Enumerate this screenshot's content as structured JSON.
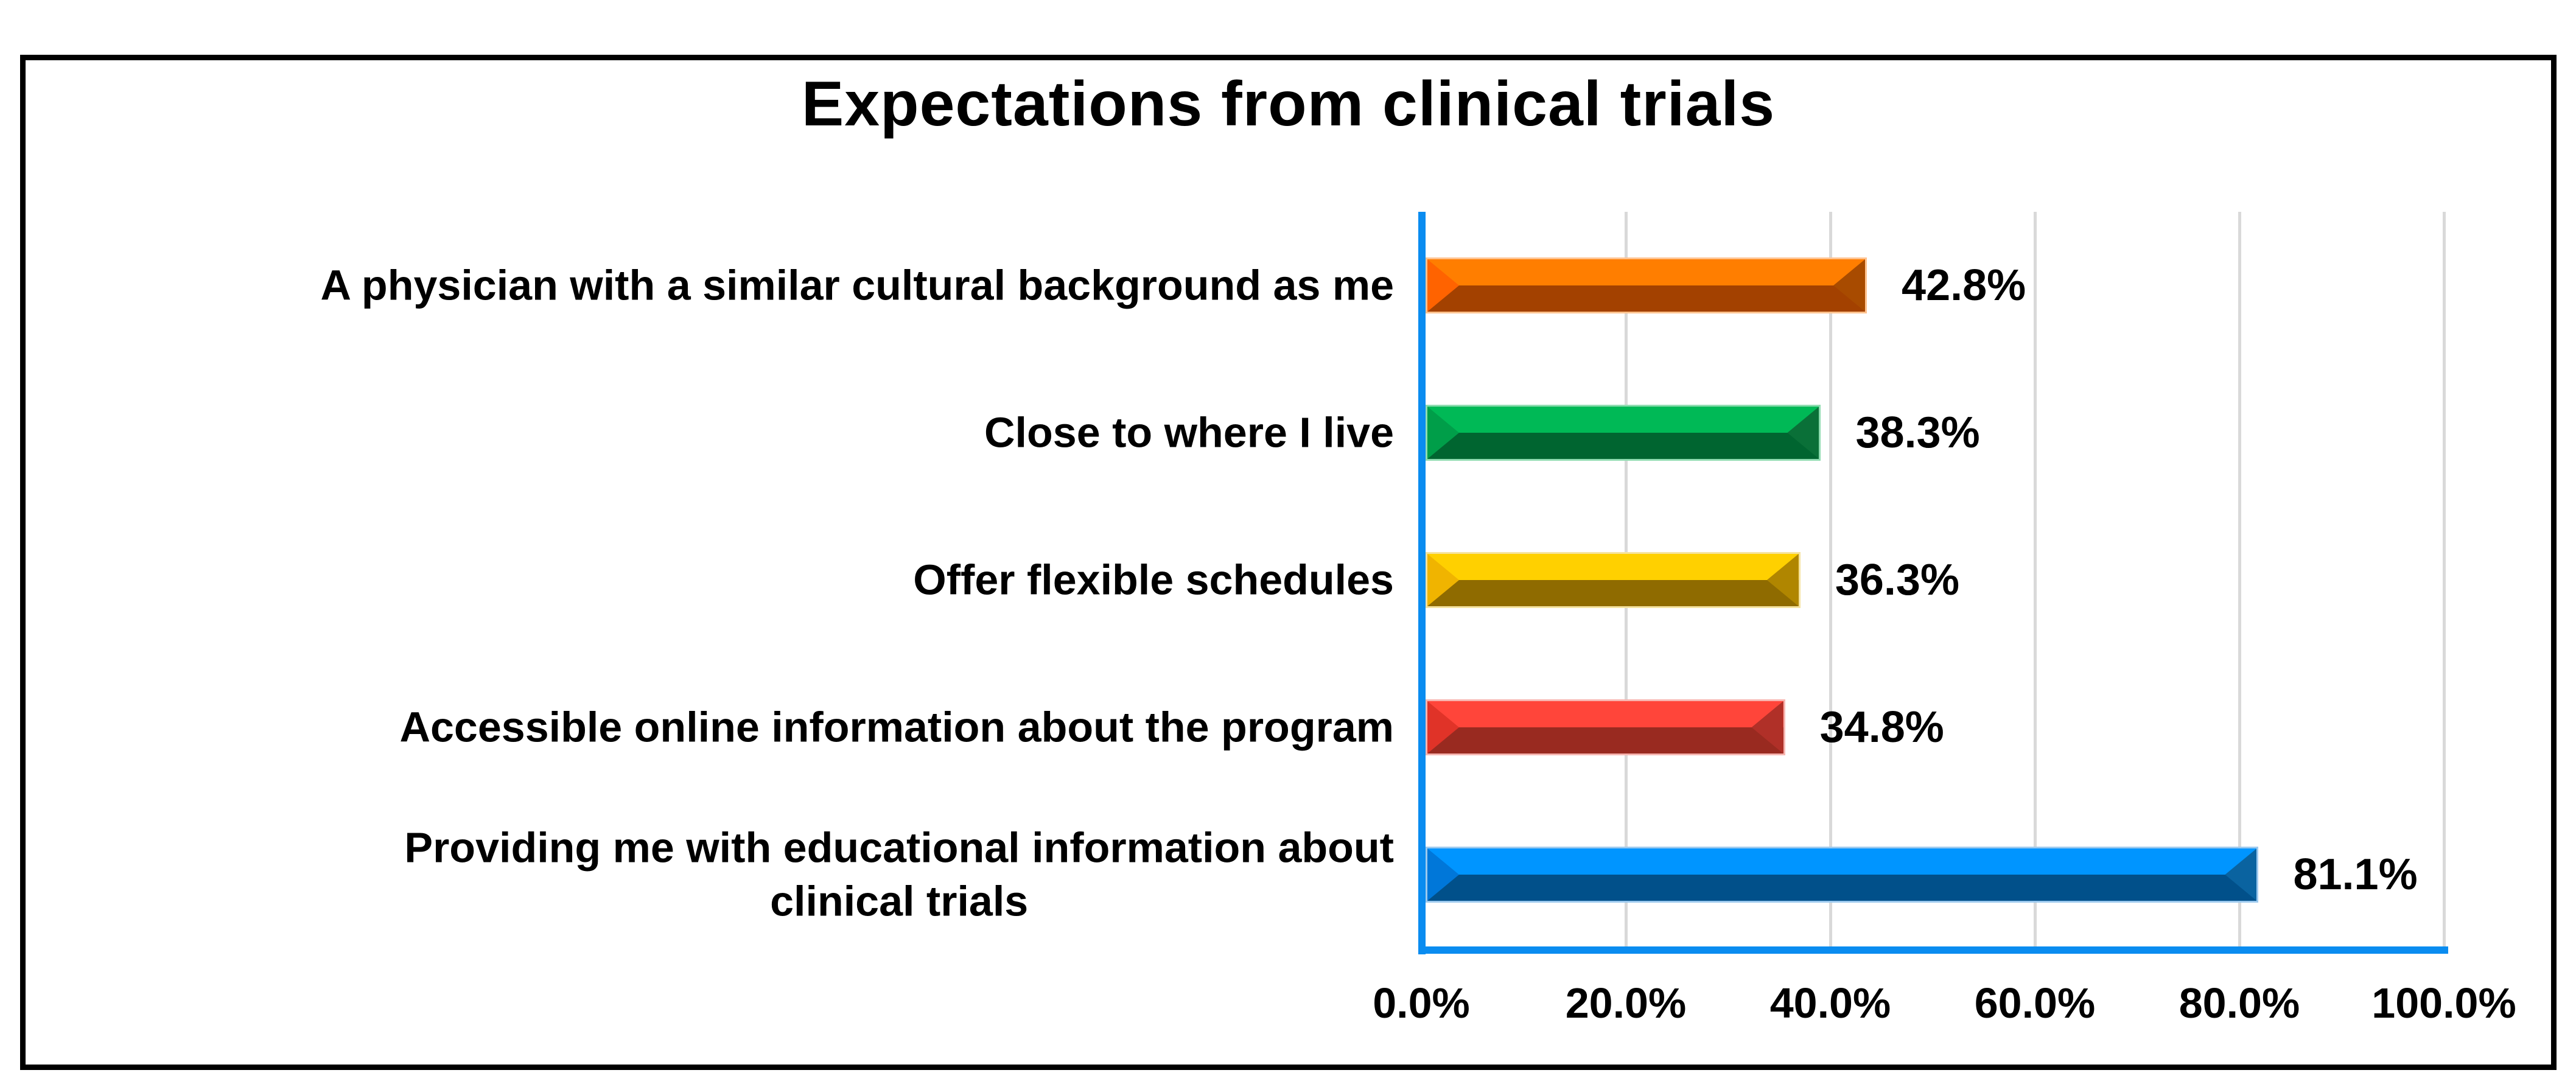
{
  "title": "Expectations from clinical trials",
  "chart_data": {
    "type": "bar",
    "orientation": "horizontal",
    "title": "Expectations from clinical trials",
    "xlabel": "",
    "ylabel": "",
    "xlim": [
      0,
      100
    ],
    "grid": "vertical-gridlines-20pct",
    "gridline_color": "#D9D9D9",
    "axis_color": "#0A8CF0",
    "x_ticks": [
      "0.0%",
      "20.0%",
      "40.0%",
      "60.0%",
      "80.0%",
      "100.0%"
    ],
    "categories": [
      "A physician with a similar cultural background as me",
      "Close to where I live",
      "Offer flexible schedules",
      "Accessible online information about the program",
      "Providing me with educational information about\nclinical trials"
    ],
    "values": [
      42.8,
      38.3,
      36.3,
      34.8,
      81.1
    ],
    "value_labels": [
      "42.8%",
      "38.3%",
      "36.3%",
      "34.8%",
      "81.1%"
    ],
    "series_colors": [
      {
        "name": "orange",
        "light": "#FF7E00",
        "dark": "#A34100",
        "capl": "#FF6300",
        "capr": "#A84B00",
        "edge": "#FFC28F"
      },
      {
        "name": "green",
        "light": "#00B956",
        "dark": "#006530",
        "capl": "#009E49",
        "capr": "#0A7038",
        "edge": "#8FDCB0"
      },
      {
        "name": "yellow",
        "light": "#FFD000",
        "dark": "#8F6B00",
        "capl": "#F0B400",
        "capr": "#B08600",
        "edge": "#F5E3A0"
      },
      {
        "name": "red",
        "light": "#FF453A",
        "dark": "#992A20",
        "capl": "#E03328",
        "capr": "#B03028",
        "edge": "#F7B6B1"
      },
      {
        "name": "blue",
        "light": "#0095FF",
        "dark": "#01508A",
        "capl": "#0077D9",
        "capr": "#0A63A0",
        "edge": "#9CC9EE"
      }
    ]
  }
}
